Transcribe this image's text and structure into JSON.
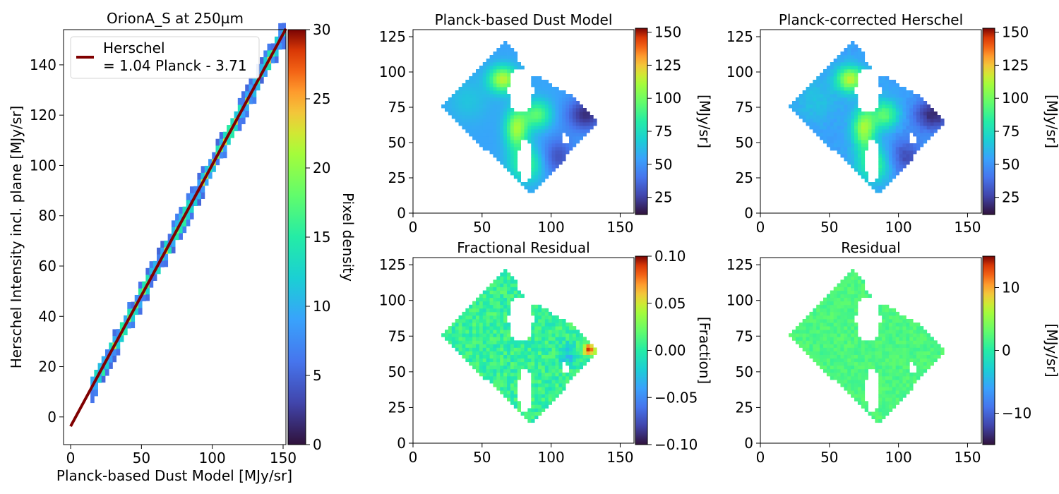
{
  "chart_data": [
    {
      "type": "heatmap",
      "title": "OrionA_S at 250µm",
      "xlabel": "Planck-based Dust Model [MJy/sr]",
      "ylabel": "Herschel Intensity incl. plane [MJy/sr]",
      "xlim": [
        -5,
        152
      ],
      "ylim": [
        -11,
        154
      ],
      "xticks": [
        0,
        50,
        100,
        150
      ],
      "yticks": [
        0,
        20,
        40,
        60,
        80,
        100,
        120,
        140
      ],
      "fit": {
        "slope": 1.04,
        "intercept": -3.71,
        "x_range": [
          0,
          152
        ],
        "color": "#800000"
      },
      "legend": {
        "position": "upper-left",
        "line1": "Herschel",
        "line2": "= 1.04 Planck - 3.71"
      },
      "density_band": {
        "x_range": [
          14,
          151
        ],
        "typical_density": [
          1,
          28
        ]
      },
      "colorbar": {
        "label": "Pixel density",
        "range": [
          0,
          30
        ],
        "ticks": [
          0,
          5,
          10,
          15,
          20,
          25,
          30
        ]
      }
    },
    {
      "type": "heatmap",
      "title": "Planck-based Dust Model",
      "xlim": [
        0,
        160
      ],
      "ylim": [
        0,
        130
      ],
      "xticks": [
        0,
        50,
        100,
        150
      ],
      "yticks": [
        0,
        25,
        50,
        75,
        100,
        125
      ],
      "colorbar": {
        "label": "[MJy/sr]",
        "range": [
          12,
          153
        ],
        "ticks": [
          25,
          50,
          75,
          100,
          125,
          150
        ]
      }
    },
    {
      "type": "heatmap",
      "title": "Planck-corrected Herschel",
      "xlim": [
        0,
        160
      ],
      "ylim": [
        0,
        130
      ],
      "xticks": [
        0,
        50,
        100,
        150
      ],
      "yticks": [
        0,
        25,
        50,
        75,
        100,
        125
      ],
      "colorbar": {
        "label": "[MJy/sr]",
        "range": [
          12,
          153
        ],
        "ticks": [
          25,
          50,
          75,
          100,
          125,
          150
        ]
      }
    },
    {
      "type": "heatmap",
      "title": "Fractional Residual",
      "xlim": [
        0,
        160
      ],
      "ylim": [
        0,
        130
      ],
      "xticks": [
        0,
        50,
        100,
        150
      ],
      "yticks": [
        0,
        25,
        50,
        75,
        100,
        125
      ],
      "colorbar": {
        "label": "[Fraction]",
        "range": [
          -0.1,
          0.1
        ],
        "ticks": [
          -0.1,
          -0.05,
          0.0,
          0.05,
          0.1
        ],
        "tick_labels": [
          "−0.10",
          "−0.05",
          "0.00",
          "0.05",
          "0.10"
        ]
      }
    },
    {
      "type": "heatmap",
      "title": "Residual",
      "xlim": [
        0,
        160
      ],
      "ylim": [
        0,
        130
      ],
      "xticks": [
        0,
        50,
        100,
        150
      ],
      "yticks": [
        0,
        25,
        50,
        75,
        100,
        125
      ],
      "colorbar": {
        "label": "[MJy/sr]",
        "range": [
          -15,
          15
        ],
        "ticks": [
          -10,
          0,
          10
        ],
        "tick_labels": [
          "−10",
          "0",
          "10"
        ]
      }
    }
  ],
  "maps": {
    "footprint_polygon": [
      [
        20,
        75
      ],
      [
        68,
        122
      ],
      [
        74,
        116
      ],
      [
        76,
        107
      ],
      [
        86,
        100
      ],
      [
        120,
        80
      ],
      [
        134,
        64
      ],
      [
        86,
        14
      ]
    ],
    "masked_regions": [
      {
        "center": [
          78,
          87
        ],
        "radius": [
          9,
          16
        ]
      },
      {
        "center": [
          87,
          106
        ],
        "radius": [
          4,
          8
        ]
      },
      {
        "center": [
          81,
          37
        ],
        "radius": [
          5,
          15
        ]
      },
      {
        "center": [
          102,
          94
        ],
        "radius": [
          4,
          4
        ]
      },
      {
        "center": [
          110,
          53
        ],
        "radius": [
          3,
          3
        ]
      },
      {
        "center": [
          73,
          78
        ],
        "radius": [
          3,
          3
        ]
      }
    ]
  },
  "colors": {
    "fit_line": "#800000",
    "colormap": "turbo"
  }
}
